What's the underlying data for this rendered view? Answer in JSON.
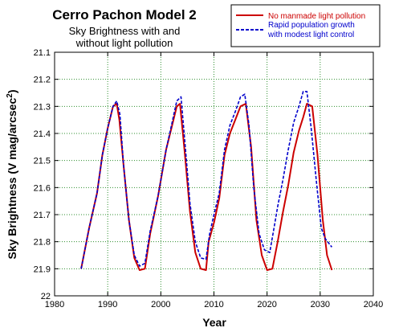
{
  "chart_data": {
    "type": "line",
    "title": "Cerro Pachon Model 2",
    "subtitle_lines": [
      "Sky Brightness with and",
      "without light pollution"
    ],
    "xlabel": "Year",
    "ylabel_main": "Sky Brightness (V mag/arcsec",
    "ylabel_sup": "2",
    "ylabel_close": ")",
    "xlim": [
      1980,
      2040
    ],
    "ylim": [
      21.1,
      22
    ],
    "y_inverted": true,
    "x_ticks": [
      "1980",
      "1990",
      "2000",
      "2010",
      "2020",
      "2030",
      "2040"
    ],
    "y_ticks": [
      "21.1",
      "21.2",
      "21.3",
      "21.4",
      "21.5",
      "21.6",
      "21.7",
      "21.8",
      "21.9",
      "22"
    ],
    "grid": true,
    "legend_position": "top-right",
    "series": [
      {
        "name": "No manmade light pollution",
        "color": "#cc0000",
        "style": "solid",
        "x": [
          1985,
          1986.5,
          1988,
          1989,
          1990,
          1991,
          1991.7,
          1992.2,
          1993,
          1994,
          1995,
          1996,
          1997,
          1998,
          1999.5,
          2001,
          2002,
          2003,
          2003.6,
          2004.5,
          2005.5,
          2006.5,
          2007.5,
          2008.5,
          2009,
          2010,
          2011,
          2012,
          2013,
          2014,
          2015,
          2016,
          2017,
          2018,
          2019,
          2020,
          2021,
          2022,
          2023,
          2024,
          2025,
          2026,
          2026.8,
          2027.5,
          2028.5,
          2029.5,
          2030.5,
          2031.3,
          2032.2
        ],
        "y": [
          21.9,
          21.75,
          21.62,
          21.48,
          21.38,
          21.3,
          21.29,
          21.35,
          21.52,
          21.72,
          21.86,
          21.905,
          21.9,
          21.77,
          21.63,
          21.46,
          21.38,
          21.3,
          21.29,
          21.47,
          21.69,
          21.84,
          21.9,
          21.905,
          21.8,
          21.73,
          21.64,
          21.48,
          21.4,
          21.35,
          21.3,
          21.29,
          21.45,
          21.72,
          21.85,
          21.905,
          21.9,
          21.8,
          21.69,
          21.59,
          21.47,
          21.39,
          21.34,
          21.29,
          21.3,
          21.48,
          21.72,
          21.85,
          21.905
        ]
      },
      {
        "name": "Rapid population growth with modest light control",
        "color": "#0000cc",
        "style": "dashed",
        "x": [
          1985,
          1986.5,
          1988,
          1989,
          1990,
          1991,
          1991.7,
          1992.3,
          1993,
          1994,
          1995,
          1996,
          1997,
          1998,
          1999.5,
          2001,
          2002,
          2003,
          2003.8,
          2004.6,
          2005.5,
          2006.5,
          2007.5,
          2008.5,
          2009.2,
          2010,
          2011,
          2012,
          2013,
          2014,
          2015,
          2015.8,
          2016.6,
          2017.5,
          2018.5,
          2019.5,
          2020.5,
          2021.3,
          2022,
          2023,
          2024,
          2025,
          2026,
          2026.8,
          2027.5,
          2028.3,
          2029.3,
          2030.2,
          2031,
          2032.2
        ],
        "y": [
          21.9,
          21.75,
          21.62,
          21.48,
          21.38,
          21.3,
          21.28,
          21.33,
          21.52,
          21.72,
          21.85,
          21.89,
          21.88,
          21.76,
          21.63,
          21.46,
          21.37,
          21.28,
          21.265,
          21.45,
          21.66,
          21.8,
          21.86,
          21.865,
          21.77,
          21.7,
          21.62,
          21.46,
          21.37,
          21.32,
          21.265,
          21.255,
          21.37,
          21.6,
          21.77,
          21.83,
          21.84,
          21.75,
          21.67,
          21.57,
          21.46,
          21.36,
          21.3,
          21.245,
          21.245,
          21.38,
          21.58,
          21.75,
          21.79,
          21.82
        ]
      }
    ]
  }
}
